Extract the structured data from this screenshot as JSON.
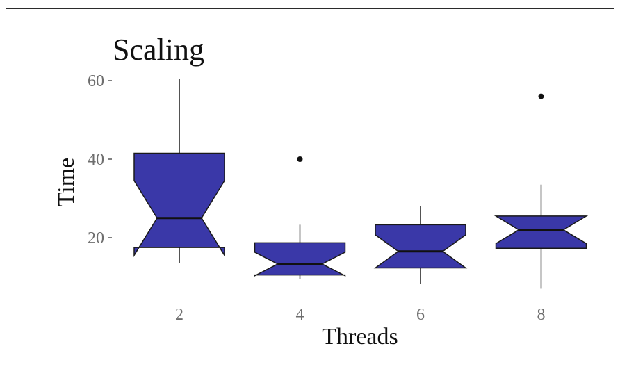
{
  "chart_data": {
    "type": "box",
    "notched": true,
    "title": "Scaling",
    "xlabel": "Threads",
    "ylabel": "Time",
    "categories": [
      "2",
      "4",
      "6",
      "8"
    ],
    "yticks": [
      20,
      40,
      60
    ],
    "ylim": [
      7,
      62.5
    ],
    "grid": false,
    "legend": "none",
    "fill_color": "#3a38a8",
    "outline_color": "#1a1a1a",
    "boxes": [
      {
        "category": "2",
        "whisker_low": 13.5,
        "q1": 17.5,
        "median": 25,
        "q3": 41.5,
        "whisker_high": 60.5,
        "notch_low": 15.5,
        "notch_high": 34.5,
        "outliers": []
      },
      {
        "category": "4",
        "whisker_low": 9.5,
        "q1": 10.5,
        "median": 13.3,
        "q3": 18.7,
        "whisker_high": 23.3,
        "notch_low": 10.3,
        "notch_high": 16.3,
        "outliers": [
          40
        ]
      },
      {
        "category": "6",
        "whisker_low": 8.3,
        "q1": 12.3,
        "median": 16.5,
        "q3": 23.3,
        "whisker_high": 28.0,
        "notch_low": 12.3,
        "notch_high": 20.7,
        "outliers": []
      },
      {
        "category": "8",
        "whisker_low": 7.0,
        "q1": 17.3,
        "median": 22.0,
        "q3": 25.5,
        "whisker_high": 33.5,
        "notch_low": 18.5,
        "notch_high": 25.5,
        "outliers": [
          56
        ]
      }
    ]
  }
}
